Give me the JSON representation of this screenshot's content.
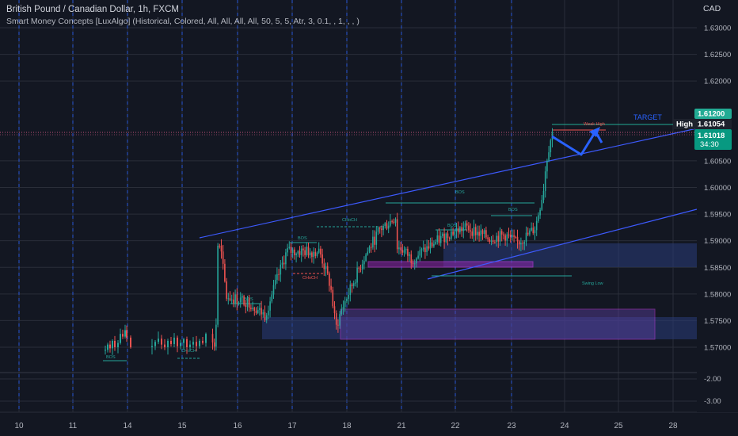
{
  "header": {
    "title": "British Pound / Canadian Dollar, 1h, FXCM",
    "indicator": "Smart Money Concepts [LuxAlgo] (Historical, Colored, All, All, All, All, 50, 5, 5, Atr, 3, 0.1, , 1, ,  , )",
    "currency": "CAD"
  },
  "colors": {
    "background": "#131722",
    "grid": "#2a2e39",
    "blue_dashed": "#2962ff",
    "bull": "#26a69a",
    "bear": "#ef5350",
    "trend_line": "#3d5afe",
    "arrow": "#2962ff",
    "zone_fill": "#2a3d7a",
    "magenta": "#e040fb",
    "green_label": "#22ab94",
    "teal_label": "#089981",
    "text": "#b2b5be"
  },
  "price_axis": {
    "ticks": [
      "1.63000",
      "1.62500",
      "1.62000",
      "1.60500",
      "1.60000",
      "1.59500",
      "1.59000",
      "1.58500",
      "1.58000",
      "1.57500",
      "1.57000"
    ],
    "badges": [
      {
        "label": "1.61200",
        "kind": "green"
      },
      {
        "label": "High",
        "kind": "dark"
      },
      {
        "label": "1.61054",
        "kind": "dark"
      },
      {
        "label": "1.61018",
        "kind": "teal"
      },
      {
        "label": "34:30",
        "kind": "teal"
      }
    ]
  },
  "oscillator_axis": {
    "ticks": [
      "-2.00",
      "-3.00"
    ]
  },
  "time_axis": {
    "labels": [
      "10",
      "11",
      "14",
      "15",
      "16",
      "17",
      "18",
      "21",
      "22",
      "23",
      "24",
      "25",
      "28"
    ]
  },
  "annotations": {
    "target": "TARGET",
    "weak_high": "Weak High",
    "swing_low": "Swing Low",
    "bos": "BOS",
    "choch": "CHoCH"
  },
  "chart_data": {
    "type": "candlestick",
    "symbol": "GBPCAD",
    "interval": "1h",
    "y_range": [
      1.5675,
      1.6325
    ],
    "target_price": 1.612,
    "high": 1.61054,
    "last_price": 1.61018,
    "countdown": "34:30",
    "path_points": [
      [
        15.6,
        1.5705
      ],
      [
        15.62,
        1.5765
      ],
      [
        15.63,
        1.5895
      ],
      [
        15.7,
        1.588
      ],
      [
        15.8,
        1.5795
      ],
      [
        16.2,
        1.5785
      ],
      [
        16.5,
        1.576
      ],
      [
        16.9,
        1.588
      ],
      [
        17.2,
        1.588
      ],
      [
        17.5,
        1.588
      ],
      [
        17.7,
        1.5815
      ],
      [
        17.8,
        1.5735
      ],
      [
        17.9,
        1.577
      ],
      [
        18.3,
        1.5865
      ],
      [
        18.6,
        1.592
      ],
      [
        18.9,
        1.5945
      ],
      [
        19.1,
        1.593
      ],
      [
        19.5,
        1.5915
      ],
      [
        20.1,
        1.5895
      ],
      [
        21.0,
        1.5885
      ],
      [
        21.2,
        1.5865
      ],
      [
        21.6,
        1.5895
      ],
      [
        21.9,
        1.5915
      ],
      [
        22.2,
        1.5925
      ],
      [
        22.6,
        1.5905
      ],
      [
        22.9,
        1.591
      ],
      [
        23.1,
        1.5895
      ],
      [
        23.3,
        1.591
      ],
      [
        23.45,
        1.5925
      ],
      [
        23.6,
        1.5995
      ],
      [
        23.65,
        1.6045
      ],
      [
        23.72,
        1.6085
      ],
      [
        23.78,
        1.6105
      ]
    ]
  }
}
